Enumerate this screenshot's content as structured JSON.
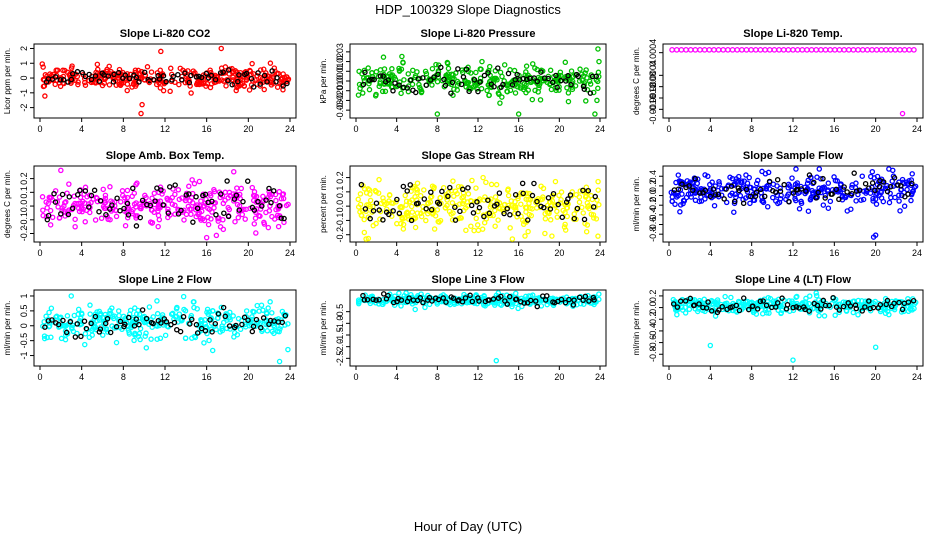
{
  "figure": {
    "title": "HDP_100329  Slope Diagnostics",
    "xlabel": "Hour of Day (UTC)"
  },
  "chart_data": [
    {
      "type": "scatter",
      "title": "Slope Li-820 CO2",
      "ylabel": "Licor ppm per min.",
      "color": "#ff0000",
      "xlim": [
        0,
        24
      ],
      "xticks": [
        0,
        4,
        8,
        12,
        16,
        20,
        24
      ],
      "xticklabels": [
        "0",
        "4",
        "8",
        "12",
        "16",
        "20",
        "24"
      ],
      "ylim": [
        -2.5,
        2.1
      ],
      "yticks": [
        -2,
        -1,
        0,
        1,
        2
      ],
      "yticklabels": [
        "-2",
        "-1",
        "0",
        "1",
        "2"
      ],
      "center": 0.0,
      "spread": 0.35,
      "black_spread": 0.25,
      "outliers": [
        {
          "x": 9.8,
          "y": -1.8
        },
        {
          "x": 9.7,
          "y": -2.4
        },
        {
          "x": 10.5,
          "y": -0.3
        },
        {
          "x": 11.6,
          "y": 1.8
        },
        {
          "x": 17.4,
          "y": 2.0
        }
      ]
    },
    {
      "type": "scatter",
      "title": "Slope Li-820 Pressure",
      "ylabel": "kPa per min.",
      "color": "#00c000",
      "xlim": [
        0,
        24
      ],
      "xticks": [
        0,
        4,
        8,
        12,
        16,
        20,
        24
      ],
      "xticklabels": [
        "0",
        "4",
        "8",
        "12",
        "16",
        "20",
        "24"
      ],
      "ylim": [
        -0.035,
        0.035
      ],
      "yticks": [
        -0.03,
        -0.02,
        -0.01,
        0,
        0.01,
        0.02,
        0.03
      ],
      "yticklabels": [
        "-0.03",
        "-0.02",
        "-0.01",
        "0.00",
        "0.01",
        "0.02",
        "0.03"
      ],
      "center": 0.0,
      "spread": 0.008,
      "black_spread": 0.006,
      "outliers": [
        {
          "x": 8.0,
          "y": -0.034
        },
        {
          "x": 16.0,
          "y": -0.034
        },
        {
          "x": 23.8,
          "y": 0.033
        },
        {
          "x": 23.5,
          "y": -0.034
        },
        {
          "x": 23.9,
          "y": 0.02
        },
        {
          "x": 23.7,
          "y": -0.02
        }
      ]
    },
    {
      "type": "scatter",
      "title": "Slope Li-820 Temp.",
      "ylabel": "degrees C per min.",
      "color": "#ff00ff",
      "xlim": [
        0,
        24
      ],
      "xticks": [
        0,
        4,
        8,
        12,
        16,
        20,
        24
      ],
      "xticklabels": [
        "0",
        "4",
        "8",
        "12",
        "16",
        "20",
        "24"
      ],
      "ylim": [
        -0.0018,
        0.0006
      ],
      "yticks": [
        -0.0016,
        -0.0012,
        -0.0008,
        -0.0004,
        0.0004
      ],
      "yticklabels": [
        "-0.0016",
        "-0.0012",
        "-0.0008",
        "-0.0004",
        "0.0004"
      ],
      "center": 0.0005,
      "spread": 0.0,
      "black_spread": 0.0,
      "mode": "line",
      "outliers": [
        {
          "x": 22.6,
          "y": -0.00175
        }
      ]
    },
    {
      "type": "scatter",
      "title": "Slope Amb. Box Temp.",
      "ylabel": "degrees C per min.",
      "color": "#ff00ff",
      "xlim": [
        0,
        24
      ],
      "xticks": [
        0,
        4,
        8,
        12,
        16,
        20,
        24
      ],
      "xticklabels": [
        "0",
        "4",
        "8",
        "12",
        "16",
        "20",
        "24"
      ],
      "ylim": [
        -0.24,
        0.27
      ],
      "yticks": [
        -0.2,
        -0.1,
        0,
        0.1,
        0.2
      ],
      "yticklabels": [
        "-0.2",
        "-0.1",
        "0.0",
        "0.1",
        "0.2"
      ],
      "center": 0.0,
      "spread": 0.075,
      "black_spread": 0.08,
      "outliers": [
        {
          "x": 18.6,
          "y": 0.25
        },
        {
          "x": 16.0,
          "y": -0.23
        },
        {
          "x": 2.0,
          "y": 0.26
        }
      ]
    },
    {
      "type": "scatter",
      "title": "Slope Gas Stream RH",
      "ylabel": "percent per min.",
      "color": "#ffff00",
      "xlim": [
        0,
        24
      ],
      "xticks": [
        0,
        4,
        8,
        12,
        16,
        20,
        24
      ],
      "xticklabels": [
        "0",
        "4",
        "8",
        "12",
        "16",
        "20",
        "24"
      ],
      "ylim": [
        -0.23,
        0.26
      ],
      "yticks": [
        -0.2,
        -0.1,
        0,
        0.1,
        0.2
      ],
      "yticklabels": [
        "-0.2",
        "-0.1",
        "0.0",
        "0.1",
        "0.2"
      ],
      "center": 0.0,
      "spread": 0.08,
      "black_spread": 0.08,
      "outliers": [
        {
          "x": 12.5,
          "y": 0.2
        },
        {
          "x": 23.8,
          "y": -0.21
        }
      ]
    },
    {
      "type": "scatter",
      "title": "Slope Sample Flow",
      "ylabel": "ml/min per min.",
      "color": "#0000ff",
      "xlim": [
        0,
        24
      ],
      "xticks": [
        0,
        4,
        8,
        12,
        16,
        20,
        24
      ],
      "xticklabels": [
        "0",
        "4",
        "8",
        "12",
        "16",
        "20",
        "24"
      ],
      "ylim": [
        -0.9,
        0.55
      ],
      "yticks": [
        -0.8,
        -0.6,
        -0.4,
        -0.2,
        0,
        0.2,
        0.4
      ],
      "yticklabels": [
        "-0.8",
        "-0.6",
        "-0.4",
        "-0.2",
        "0.0",
        "0.2",
        "0.4"
      ],
      "center": 0.1,
      "spread": 0.18,
      "black_spread": 0.15,
      "outliers": [
        {
          "x": 20.0,
          "y": -0.82
        },
        {
          "x": 19.8,
          "y": -0.86
        },
        {
          "x": 9.0,
          "y": 0.5
        }
      ]
    },
    {
      "type": "scatter",
      "title": "Slope Line 2 Flow",
      "ylabel": "ml/min per min.",
      "color": "#00ffff",
      "xlim": [
        0,
        24
      ],
      "xticks": [
        0,
        4,
        8,
        12,
        16,
        20,
        24
      ],
      "xticklabels": [
        "0",
        "4",
        "8",
        "12",
        "16",
        "20",
        "24"
      ],
      "ylim": [
        -1.25,
        1.1
      ],
      "yticks": [
        -1,
        -0.5,
        0,
        0.5,
        1
      ],
      "yticklabels": [
        "-1",
        "-0.5",
        "0",
        "0.5",
        "1"
      ],
      "center": 0.1,
      "spread": 0.28,
      "black_spread": 0.18,
      "outliers": [
        {
          "x": 3.0,
          "y": 1.0
        },
        {
          "x": 23.0,
          "y": -1.2
        },
        {
          "x": 23.8,
          "y": -0.8
        }
      ]
    },
    {
      "type": "scatter",
      "title": "Slope Line 3 Flow",
      "ylabel": "ml/min per min.",
      "color": "#00ffff",
      "xlim": [
        0,
        24
      ],
      "xticks": [
        0,
        4,
        8,
        12,
        16,
        20,
        24
      ],
      "xticklabels": [
        "0",
        "4",
        "8",
        "12",
        "16",
        "20",
        "24"
      ],
      "ylim": [
        -2.7,
        0.3
      ],
      "yticks": [
        -2.5,
        -2,
        -1.5,
        -1,
        -0.5
      ],
      "yticklabels": [
        "-2.5",
        "-2.0",
        "-1.5",
        "-1.0",
        "-0.5"
      ],
      "center": 0.0,
      "spread": 0.12,
      "black_spread": 0.1,
      "outliers": [
        {
          "x": 13.8,
          "y": -2.6
        }
      ]
    },
    {
      "type": "scatter",
      "title": "Slope Line 4 (LT) Flow",
      "ylabel": "ml/min per min.",
      "color": "#00ffff",
      "xlim": [
        0,
        24
      ],
      "xticks": [
        0,
        4,
        8,
        12,
        16,
        20,
        24
      ],
      "xticklabels": [
        "0",
        "4",
        "8",
        "12",
        "16",
        "20",
        "24"
      ],
      "ylim": [
        -0.95,
        0.25
      ],
      "yticks": [
        -0.8,
        -0.6,
        -0.4,
        -0.2,
        0,
        0.2
      ],
      "yticklabels": [
        "-0.8",
        "-0.6",
        "-0.4",
        "-0.2",
        "0.0",
        "0.2"
      ],
      "center": 0.03,
      "spread": 0.07,
      "black_spread": 0.06,
      "outliers": [
        {
          "x": 4.0,
          "y": -0.65
        },
        {
          "x": 12.0,
          "y": -0.9
        },
        {
          "x": 20.0,
          "y": -0.68
        }
      ]
    }
  ]
}
